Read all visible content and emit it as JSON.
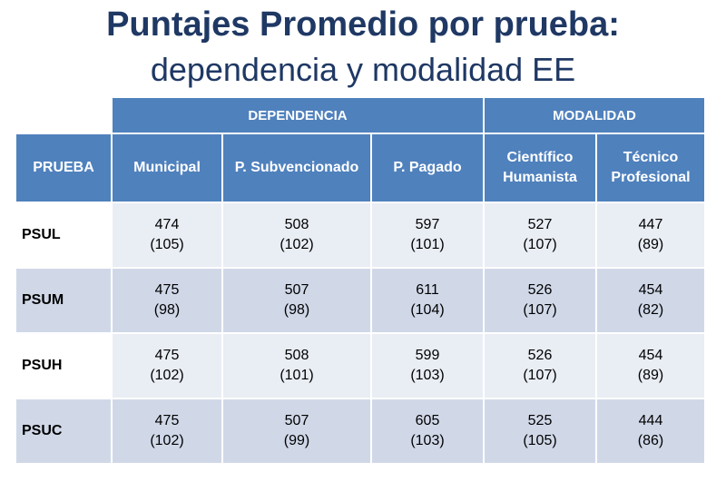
{
  "title": {
    "line1": "Puntajes Promedio por prueba:",
    "line2": "dependencia y modalidad EE"
  },
  "table": {
    "groups": {
      "dependencia": "DEPENDENCIA",
      "modalidad": "MODALIDAD"
    },
    "columns": {
      "prueba": "PRUEBA",
      "municipal": "Municipal",
      "subvencionado": "P. Subvencionado",
      "pagado": "P. Pagado",
      "cientifico_1": "Científico",
      "cientifico_2": "Humanista",
      "tecnico_1": "Técnico",
      "tecnico_2": "Profesional"
    },
    "rows": [
      {
        "label": "PSUL",
        "cells": [
          {
            "val": "474",
            "sd": "(105)"
          },
          {
            "val": "508",
            "sd": "(102)"
          },
          {
            "val": "597",
            "sd": "(101)"
          },
          {
            "val": "527",
            "sd": "(107)"
          },
          {
            "val": "447",
            "sd": "(89)"
          }
        ]
      },
      {
        "label": "PSUM",
        "cells": [
          {
            "val": "475",
            "sd": "(98)"
          },
          {
            "val": "507",
            "sd": "(98)"
          },
          {
            "val": "611",
            "sd": "(104)"
          },
          {
            "val": "526",
            "sd": "(107)"
          },
          {
            "val": "454",
            "sd": "(82)"
          }
        ]
      },
      {
        "label": "PSUH",
        "cells": [
          {
            "val": "475",
            "sd": "(102)"
          },
          {
            "val": "508",
            "sd": "(101)"
          },
          {
            "val": "599",
            "sd": "(103)"
          },
          {
            "val": "526",
            "sd": "(107)"
          },
          {
            "val": "454",
            "sd": "(89)"
          }
        ]
      },
      {
        "label": "PSUC",
        "cells": [
          {
            "val": "475",
            "sd": "(102)"
          },
          {
            "val": "507",
            "sd": "(99)"
          },
          {
            "val": "605",
            "sd": "(103)"
          },
          {
            "val": "525",
            "sd": "(105)"
          },
          {
            "val": "444",
            "sd": "(86)"
          }
        ]
      }
    ]
  },
  "colors": {
    "header_bg": "#4f81bd",
    "title_text": "#1f3864",
    "row_light": "#e9edf4",
    "row_dark": "#d0d8e8"
  }
}
